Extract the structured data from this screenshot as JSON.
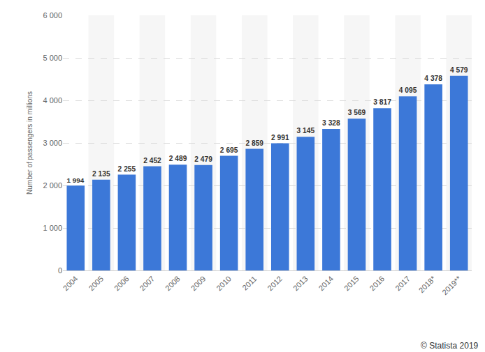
{
  "chart_data": {
    "type": "bar",
    "y_label": "Number of passengers in millions",
    "categories": [
      "2004",
      "2005",
      "2006",
      "2007",
      "2008",
      "2009",
      "2010",
      "2011",
      "2012",
      "2013",
      "2014",
      "2015",
      "2016",
      "2017",
      "2018*",
      "2019**"
    ],
    "values": [
      1994,
      2135,
      2255,
      2452,
      2489,
      2479,
      2695,
      2859,
      2991,
      3145,
      3328,
      3569,
      3817,
      4095,
      4378,
      4579
    ],
    "value_labels": [
      "1 994",
      "2 135",
      "2 255",
      "2 452",
      "2 489",
      "2 479",
      "2 695",
      "2 859",
      "2 991",
      "3 145",
      "3 328",
      "3 569",
      "3 817",
      "4 095",
      "4 378",
      "4 579"
    ],
    "color": "#3c78d8",
    "ylim": [
      0,
      6000
    ],
    "yticks": [
      0,
      {
        "value": 1000,
        "label": "1 000"
      },
      {
        "value": 2000,
        "label": "2 000"
      },
      {
        "value": 3000,
        "label": "3 000"
      },
      {
        "value": 4000,
        "label": "4 000"
      },
      {
        "value": 5000,
        "label": "5 000"
      },
      {
        "value": 6000,
        "label": "6 000"
      }
    ],
    "grid": true,
    "data_labels": true,
    "annotations": [
      "© Statista 2019"
    ]
  }
}
